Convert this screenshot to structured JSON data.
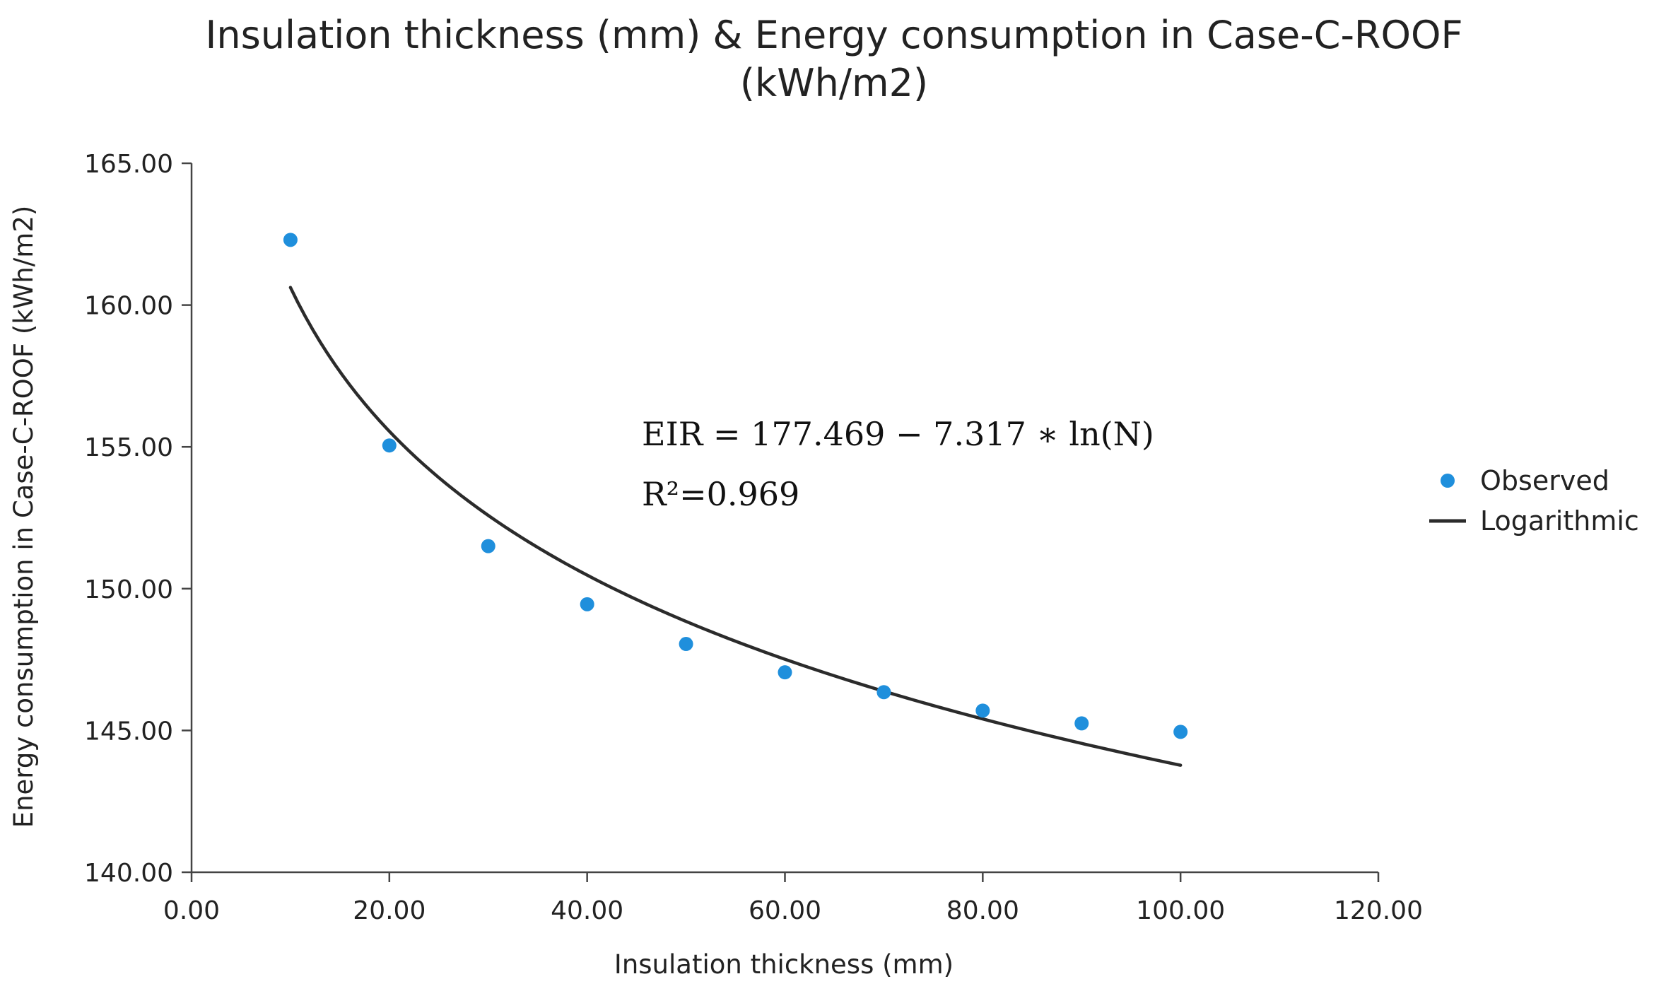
{
  "chart_data": {
    "type": "scatter",
    "title": "Insulation thickness (mm) & Energy consumption in Case-C-ROOF",
    "subtitle": "(kWh/m2)",
    "xlabel": "Insulation thickness (mm)",
    "ylabel": "Energy consumption in Case-C-ROOF (kWh/m2)",
    "xlim": [
      0,
      120
    ],
    "ylim": [
      140,
      165
    ],
    "x_ticks": [
      "0.00",
      "20.00",
      "40.00",
      "60.00",
      "80.00",
      "100.00",
      "120.00"
    ],
    "y_ticks": [
      "140.00",
      "145.00",
      "150.00",
      "155.00",
      "160.00",
      "165.00"
    ],
    "grid": false,
    "legend_position": "right",
    "series": [
      {
        "name": "Observed",
        "type": "scatter",
        "color": "#1f8fdc",
        "x": [
          10,
          20,
          30,
          40,
          50,
          60,
          70,
          80,
          90,
          100
        ],
        "y": [
          162.3,
          155.05,
          151.5,
          149.45,
          148.05,
          147.05,
          146.35,
          145.7,
          145.25,
          144.95
        ]
      },
      {
        "name": "Logarithmic",
        "type": "line",
        "color": "#2b2b2b",
        "x_range": [
          10,
          100
        ],
        "intercept": 177.469,
        "coefficient": -7.317
      }
    ],
    "annotations": {
      "equation": "EIR = 177.469 − 7.317 ∗ ln(N)",
      "r_squared": "R²=0.969"
    }
  }
}
